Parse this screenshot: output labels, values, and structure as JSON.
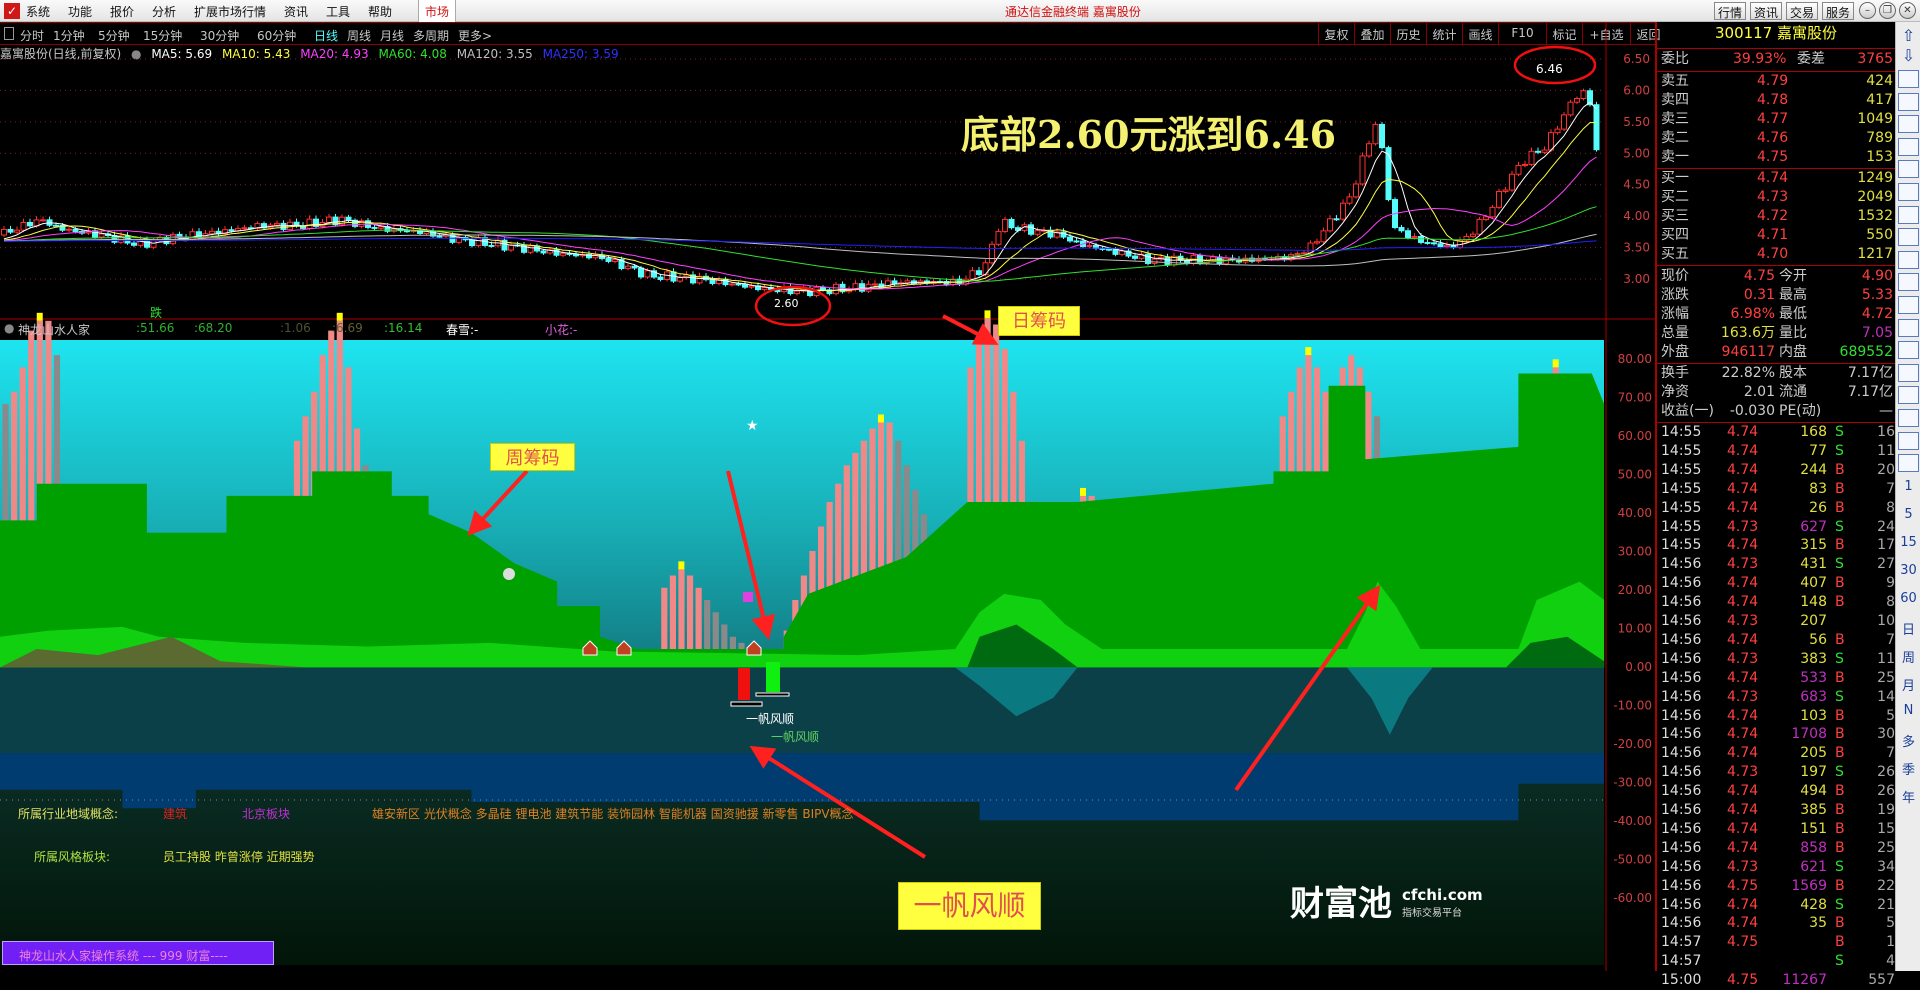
{
  "menubar": {
    "items": [
      "系统",
      "功能",
      "报价",
      "分析",
      "扩展市场行情",
      "资讯",
      "工具",
      "帮助"
    ],
    "market": "市场",
    "app_title": "通达信金融终端 嘉寓股份",
    "buttons": [
      "行情",
      "资讯",
      "交易",
      "服务"
    ]
  },
  "periods": {
    "items": [
      "分时",
      "1分钟",
      "5分钟",
      "15分钟",
      "30分钟",
      "60分钟",
      "日线",
      "周线",
      "月线",
      "多周期",
      "更多>"
    ],
    "active": "日线"
  },
  "chart_tools": [
    "复权",
    "叠加",
    "历史",
    "统计",
    "画线",
    "F10",
    "标记",
    "+自选",
    "返回"
  ],
  "ma_line": {
    "title": "嘉寓股份(日线,前复权)",
    "ma5": "MA5: 5.69",
    "ma10": "MA10: 5.43",
    "ma20": "MA20: 4.93",
    "ma60": "MA60: 4.08",
    "ma120": "MA120: 3.55",
    "ma250": "MA250: 3.59"
  },
  "colors": {
    "up": "#ff3030",
    "down": "#54fcfc",
    "ma5": "#ffffff",
    "ma10": "#ffff40",
    "ma20": "#ff40ff",
    "ma60": "#30e030",
    "ma120": "#c0c0c0",
    "ma250": "#2020ff"
  },
  "price_axis": [
    "6.50",
    "6.00",
    "5.50",
    "5.00",
    "4.50",
    "4.00",
    "3.50",
    "3.00"
  ],
  "indicator_axis": [
    "80.00",
    "70.00",
    "60.00",
    "50.00",
    "40.00",
    "30.00",
    "20.00",
    "10.00",
    "0.00",
    "-10.00",
    "-20.00",
    "-30.00",
    "-40.00",
    "-50.00",
    "-60.00"
  ],
  "annotations": {
    "headline": "底部2.60元涨到6.46",
    "low_label": "2.60",
    "high_label": "6.46",
    "fall_label": "跌",
    "weekly_chips": "周筹码",
    "daily_chips": "日筹码",
    "smooth_sailing": "一帆风顺",
    "signal_text": "一帆风顺"
  },
  "indicator_header": {
    "name": "神龙山水人家",
    "v1": ":51.66",
    "v2": ":68.20",
    "v3": ":1.06",
    "v4": ":6.69",
    "v5": ":16.14",
    "chunxue": "春雪:-",
    "xiaohua": "小花:-"
  },
  "concepts": {
    "industry_label": "所属行业地域概念:",
    "industry": "建筑",
    "region": "北京板块",
    "list": "雄安新区 光伏概念 多晶硅 锂电池 建筑节能 装饰园林 智能机器 国资驰援 新零售 BIPV概念",
    "style_label": "所属风格板块:",
    "style": "员工持股 昨曾涨停 近期强势"
  },
  "system_banner": "神龙山水人家操作系统 --- 999 财富----",
  "quote": {
    "header": "300117 嘉寓股份",
    "weibi": {
      "l1": "委比",
      "v1": "39.93%",
      "l2": "委差",
      "v2": "3765"
    },
    "sell": [
      {
        "label": "卖五",
        "price": "4.79",
        "vol": "424"
      },
      {
        "label": "卖四",
        "price": "4.78",
        "vol": "417"
      },
      {
        "label": "卖三",
        "price": "4.77",
        "vol": "1049"
      },
      {
        "label": "卖二",
        "price": "4.76",
        "vol": "789"
      },
      {
        "label": "卖一",
        "price": "4.75",
        "vol": "153"
      }
    ],
    "buy": [
      {
        "label": "买一",
        "price": "4.74",
        "vol": "1249"
      },
      {
        "label": "买二",
        "price": "4.73",
        "vol": "2049"
      },
      {
        "label": "买三",
        "price": "4.72",
        "vol": "1532"
      },
      {
        "label": "买四",
        "price": "4.71",
        "vol": "550"
      },
      {
        "label": "买五",
        "price": "4.70",
        "vol": "1217"
      }
    ],
    "stats": [
      {
        "l1": "现价",
        "v1": "4.75",
        "c1": "#ff4040",
        "l2": "今开",
        "v2": "4.90",
        "c2": "#ff4040"
      },
      {
        "l1": "涨跌",
        "v1": "0.31",
        "c1": "#ff4040",
        "l2": "最高",
        "v2": "5.33",
        "c2": "#ff4040"
      },
      {
        "l1": "涨幅",
        "v1": "6.98%",
        "c1": "#ff4040",
        "l2": "最低",
        "v2": "4.72",
        "c2": "#ff4040"
      },
      {
        "l1": "总量",
        "v1": "163.6万",
        "c1": "#e0e040",
        "l2": "量比",
        "v2": "7.05",
        "c2": "#c030c0"
      },
      {
        "l1": "外盘",
        "v1": "946117",
        "c1": "#ff4040",
        "l2": "内盘",
        "v2": "689552",
        "c2": "#30e030"
      }
    ],
    "stats2": [
      {
        "l1": "换手",
        "v1": "22.82%",
        "l2": "股本",
        "v2": "7.17亿"
      },
      {
        "l1": "净资",
        "v1": "2.01",
        "l2": "流通",
        "v2": "7.17亿"
      },
      {
        "l1": "收益(一)",
        "v1": "-0.030",
        "l2": "PE(动)",
        "v2": "—"
      }
    ],
    "ticks": [
      [
        "14:55",
        "4.74",
        "168",
        "S",
        "16"
      ],
      [
        "14:55",
        "4.74",
        "77",
        "S",
        "11"
      ],
      [
        "14:55",
        "4.74",
        "244",
        "B",
        "20"
      ],
      [
        "14:55",
        "4.74",
        "83",
        "B",
        "7"
      ],
      [
        "14:55",
        "4.74",
        "26",
        "B",
        "8"
      ],
      [
        "14:55",
        "4.73",
        "627",
        "S",
        "24"
      ],
      [
        "14:55",
        "4.74",
        "315",
        "B",
        "17"
      ],
      [
        "14:56",
        "4.73",
        "431",
        "S",
        "27"
      ],
      [
        "14:56",
        "4.74",
        "407",
        "B",
        "9"
      ],
      [
        "14:56",
        "4.74",
        "148",
        "B",
        "8"
      ],
      [
        "14:56",
        "4.73",
        "207",
        "",
        "10"
      ],
      [
        "14:56",
        "4.74",
        "56",
        "B",
        "7"
      ],
      [
        "14:56",
        "4.73",
        "383",
        "S",
        "11"
      ],
      [
        "14:56",
        "4.74",
        "533",
        "B",
        "25"
      ],
      [
        "14:56",
        "4.73",
        "683",
        "S",
        "14"
      ],
      [
        "14:56",
        "4.74",
        "103",
        "B",
        "5"
      ],
      [
        "14:56",
        "4.74",
        "1708",
        "B",
        "30"
      ],
      [
        "14:56",
        "4.74",
        "205",
        "B",
        "7"
      ],
      [
        "14:56",
        "4.73",
        "197",
        "S",
        "26"
      ],
      [
        "14:56",
        "4.74",
        "494",
        "B",
        "26"
      ],
      [
        "14:56",
        "4.74",
        "385",
        "B",
        "19"
      ],
      [
        "14:56",
        "4.74",
        "151",
        "B",
        "15"
      ],
      [
        "14:56",
        "4.74",
        "858",
        "B",
        "25"
      ],
      [
        "14:56",
        "4.73",
        "621",
        "S",
        "34"
      ],
      [
        "14:56",
        "4.75",
        "1569",
        "B",
        "22"
      ],
      [
        "14:56",
        "4.74",
        "428",
        "S",
        "21"
      ],
      [
        "14:56",
        "4.74",
        "35",
        "B",
        "5"
      ],
      [
        "14:57",
        "4.75",
        "",
        "B",
        "1"
      ],
      [
        "14:57",
        "",
        "",
        "S",
        "4"
      ],
      [
        "15:00",
        "4.75",
        "11267",
        "",
        "557"
      ]
    ]
  },
  "watermark": {
    "brand": "财富池",
    "site": "cfchi.com",
    "slogan": "指标交易平台"
  },
  "toolbar": {
    "periods": [
      "1",
      "5",
      "15",
      "30",
      "60",
      "日",
      "周",
      "月",
      "N",
      "多",
      "季",
      "年"
    ]
  }
}
